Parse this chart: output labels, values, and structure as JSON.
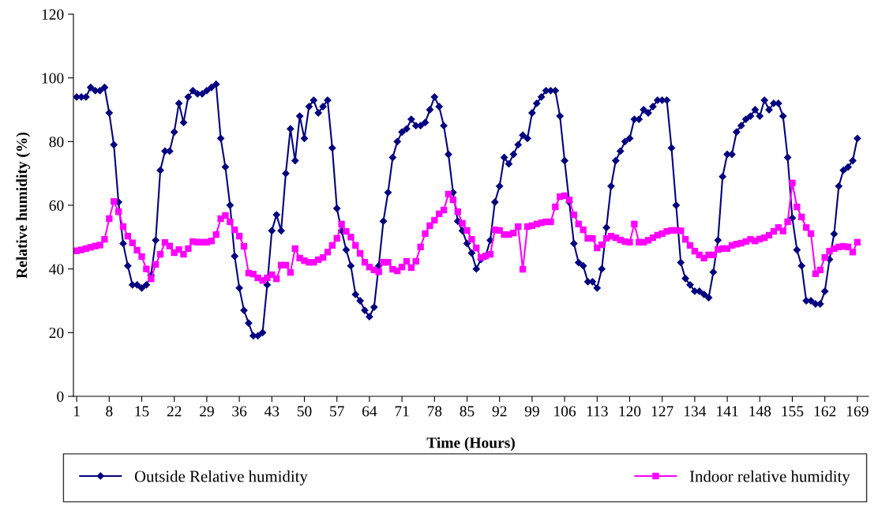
{
  "chart_data": {
    "type": "line",
    "xlabel": "Time (Hours)",
    "ylabel": "Relative humidity (%)",
    "categories": [
      "1",
      null,
      null,
      null,
      null,
      null,
      null,
      "8",
      null,
      null,
      null,
      null,
      null,
      null,
      "15",
      null,
      null,
      null,
      null,
      null,
      null,
      "22",
      null,
      null,
      null,
      null,
      null,
      null,
      "29",
      null,
      null,
      null,
      null,
      null,
      null,
      "36",
      null,
      null,
      null,
      null,
      null,
      null,
      "43",
      null,
      null,
      null,
      null,
      null,
      null,
      "50",
      null,
      null,
      null,
      null,
      null,
      null,
      "57",
      null,
      null,
      null,
      null,
      null,
      null,
      "64",
      null,
      null,
      null,
      null,
      null,
      null,
      "71",
      null,
      null,
      null,
      null,
      null,
      null,
      "78",
      null,
      null,
      null,
      null,
      null,
      null,
      "85",
      null,
      null,
      null,
      null,
      null,
      null,
      "92",
      null,
      null,
      null,
      null,
      null,
      null,
      "99",
      null,
      null,
      null,
      null,
      null,
      null,
      "106",
      null,
      null,
      null,
      null,
      null,
      null,
      "113",
      null,
      null,
      null,
      null,
      null,
      null,
      "120",
      null,
      null,
      null,
      null,
      null,
      null,
      "127",
      null,
      null,
      null,
      null,
      null,
      null,
      "134",
      null,
      null,
      null,
      null,
      null,
      null,
      "141",
      null,
      null,
      null,
      null,
      null,
      null,
      "148",
      null,
      null,
      null,
      null,
      null,
      null,
      "155",
      null,
      null,
      null,
      null,
      null,
      null,
      "162",
      null,
      null,
      null,
      null,
      null,
      null,
      "169"
    ],
    "series": [
      {
        "name": "Outside Relative humidity",
        "color": "#000080",
        "marker": "diamond",
        "values": [
          94,
          94,
          94,
          97,
          96,
          96,
          97,
          89,
          79,
          61,
          48,
          41,
          35,
          35,
          34,
          35,
          38,
          49,
          71,
          77,
          77,
          83,
          92,
          86,
          94,
          96,
          95,
          95,
          96,
          97,
          98,
          81,
          72,
          60,
          44,
          34,
          27,
          23,
          19,
          19,
          20,
          35,
          52,
          57,
          52,
          70,
          84,
          74,
          88,
          81,
          91,
          93,
          89,
          91,
          93,
          78,
          59,
          52,
          46,
          41,
          32,
          30,
          27,
          25,
          28,
          41,
          55,
          64,
          75,
          80,
          83,
          84,
          87,
          85,
          85,
          86,
          90,
          94,
          91,
          85,
          76,
          64,
          55,
          52,
          48,
          45,
          40,
          43,
          44,
          49,
          61,
          66,
          75,
          73,
          76,
          79,
          82,
          81,
          89,
          92,
          94,
          96,
          96,
          96,
          88,
          74,
          61,
          48,
          42,
          41,
          36,
          36,
          34,
          40,
          53,
          66,
          74,
          77,
          80,
          81,
          87,
          87,
          90,
          89,
          91,
          93,
          93,
          93,
          78,
          60,
          42,
          37,
          35,
          33,
          33,
          32,
          31,
          39,
          49,
          69,
          76,
          76,
          83,
          85,
          87,
          88,
          90,
          88,
          93,
          90,
          92,
          92,
          88,
          75,
          56,
          46,
          41,
          30,
          30,
          29,
          29,
          33,
          43,
          51,
          66,
          71,
          72,
          74,
          81
        ]
      },
      {
        "name": "Indoor relative humidity",
        "color": "#ff00ff",
        "marker": "square",
        "values": [
          45.7,
          46,
          46.4,
          46.8,
          47.2,
          47.5,
          49.3,
          55.8,
          61.2,
          58,
          53.3,
          50.3,
          48.2,
          45.9,
          43.9,
          40,
          36.9,
          41.4,
          44.6,
          48.3,
          47.2,
          45.1,
          46.1,
          44.6,
          46.4,
          48.6,
          48.4,
          48.4,
          48.4,
          48.8,
          50.8,
          55.8,
          56.8,
          54.8,
          52.3,
          50.3,
          47.1,
          38.7,
          38.4,
          37.2,
          36.4,
          37.2,
          38.2,
          36.9,
          41.2,
          41.2,
          38.9,
          46.4,
          43.4,
          42.6,
          42.1,
          42.1,
          42.9,
          43.6,
          45.3,
          47.4,
          49.6,
          54.1,
          51.8,
          50,
          47.4,
          44.9,
          42.1,
          40.6,
          39.7,
          39.1,
          42.1,
          42.1,
          39.9,
          39.4,
          40.6,
          42.4,
          40.4,
          42.4,
          46.9,
          51.1,
          53.6,
          55.3,
          57.3,
          58.5,
          63.5,
          61.7,
          58,
          54.3,
          52.1,
          49.3,
          46.6,
          43.6,
          44.1,
          44.6,
          52.3,
          52.1,
          50.8,
          50.8,
          51.3,
          53.3,
          39.9,
          53.3,
          53.6,
          54.1,
          54.5,
          54.8,
          54.8,
          59.5,
          62.7,
          63,
          61.7,
          57,
          54.1,
          52.3,
          49.6,
          49.6,
          46.6,
          47.6,
          49.6,
          50.3,
          49.8,
          49.1,
          48.6,
          48.4,
          54.1,
          48.4,
          48.4,
          49,
          49.8,
          50.6,
          51.1,
          51.8,
          52.1,
          52.1,
          52,
          49.3,
          47.4,
          45.6,
          44.4,
          43.4,
          44.4,
          44.4,
          46.1,
          46.4,
          46.4,
          47.4,
          47.8,
          48.1,
          48.6,
          49.3,
          48.8,
          49.4,
          49.8,
          50.6,
          51.8,
          53,
          51.9,
          54.8,
          67,
          59.5,
          56.3,
          53,
          51.1,
          38.5,
          39.7,
          43.6,
          45.6,
          46.4,
          46.9,
          47.1,
          46.9,
          45.3,
          48.4
        ]
      }
    ],
    "ylim": [
      0,
      120
    ],
    "yticks": [
      0,
      20,
      40,
      60,
      80,
      100,
      120
    ],
    "grid": false,
    "legend": "bottom",
    "line_style": "solid"
  }
}
